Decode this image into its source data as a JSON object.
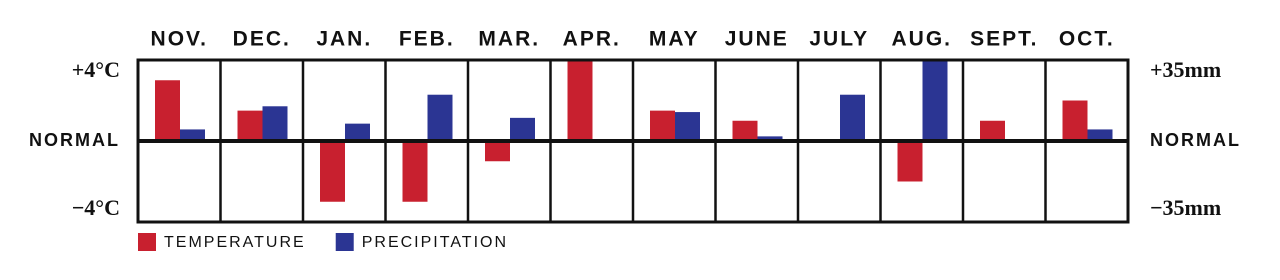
{
  "chart_data": {
    "type": "bar",
    "categories": [
      "NOV.",
      "DEC.",
      "JAN.",
      "FEB.",
      "MAR.",
      "APR.",
      "MAY",
      "JUNE",
      "JULY",
      "AUG.",
      "SEPT.",
      "OCT."
    ],
    "series": [
      {
        "name": "TEMPERATURE",
        "color": "#c8202f",
        "values": [
          3,
          1.5,
          -3,
          -3,
          -1,
          4,
          1.5,
          1,
          0,
          -2,
          1,
          2
        ]
      },
      {
        "name": "PRECIPITATION",
        "color": "#2b3593",
        "axis": "y2",
        "values": [
          5,
          15,
          7.5,
          20,
          10,
          0,
          12.5,
          2,
          20,
          35,
          0,
          5
        ]
      }
    ],
    "ylim": [
      -4,
      4
    ],
    "yticks": [
      {
        "value": 4,
        "label": "+4°C"
      },
      {
        "value": 0,
        "label": "NORMAL"
      },
      {
        "value": -4,
        "label": "−4°C"
      }
    ],
    "y2lim": [
      -35,
      35
    ],
    "y2ticks": [
      {
        "value": 35,
        "label": "+35mm"
      },
      {
        "value": 0,
        "label": "NORMAL"
      },
      {
        "value": -35,
        "label": "−35mm"
      }
    ]
  }
}
